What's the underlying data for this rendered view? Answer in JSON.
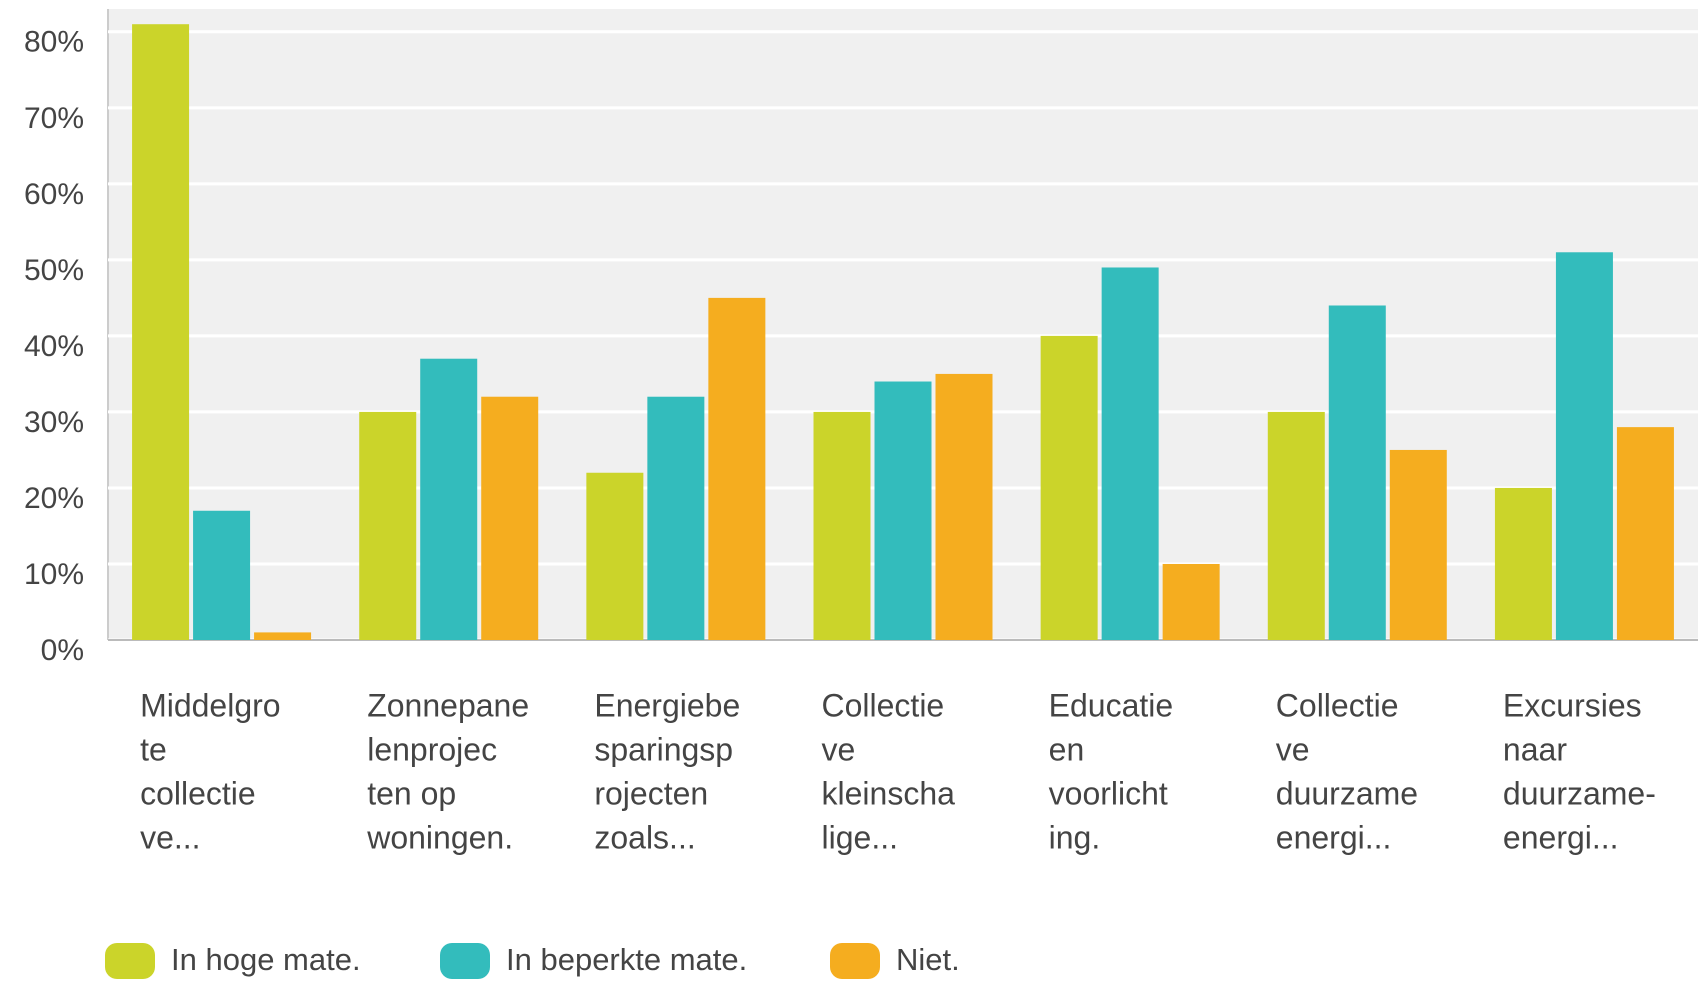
{
  "chart_data": {
    "type": "bar",
    "categories": [
      [
        "Middelgro",
        "te",
        "collectie",
        "ve..."
      ],
      [
        "Zonnepane",
        "lenprojec",
        "ten op",
        "woningen."
      ],
      [
        "Energiebe",
        "sparingsp",
        "rojecten",
        "zoals..."
      ],
      [
        "Collectie",
        "ve",
        "kleinscha",
        "lige..."
      ],
      [
        "Educatie",
        "en",
        "voorlicht",
        "ing."
      ],
      [
        "Collectie",
        "ve",
        "duurzame",
        "energi..."
      ],
      [
        "Excursies",
        "naar",
        "duurzame-",
        "energi..."
      ]
    ],
    "series": [
      {
        "name": "In hoge mate.",
        "color": "#cbd42a",
        "values": [
          81,
          30,
          22,
          30,
          40,
          30,
          20
        ]
      },
      {
        "name": "In beperkte mate.",
        "color": "#33bcbc",
        "values": [
          17,
          37,
          32,
          34,
          49,
          44,
          51
        ]
      },
      {
        "name": "Niet.",
        "color": "#f5ad1f",
        "values": [
          1,
          32,
          45,
          35,
          10,
          25,
          28
        ]
      }
    ],
    "ylim": [
      0,
      83
    ],
    "yticks": [
      {
        "value": 0,
        "label": "0%"
      },
      {
        "value": 10,
        "label": "10%"
      },
      {
        "value": 20,
        "label": "20%"
      },
      {
        "value": 30,
        "label": "30%"
      },
      {
        "value": 40,
        "label": "40%"
      },
      {
        "value": 50,
        "label": "50%"
      },
      {
        "value": 60,
        "label": "60%"
      },
      {
        "value": 70,
        "label": "70%"
      },
      {
        "value": 80,
        "label": "80%"
      }
    ],
    "grid": true
  }
}
